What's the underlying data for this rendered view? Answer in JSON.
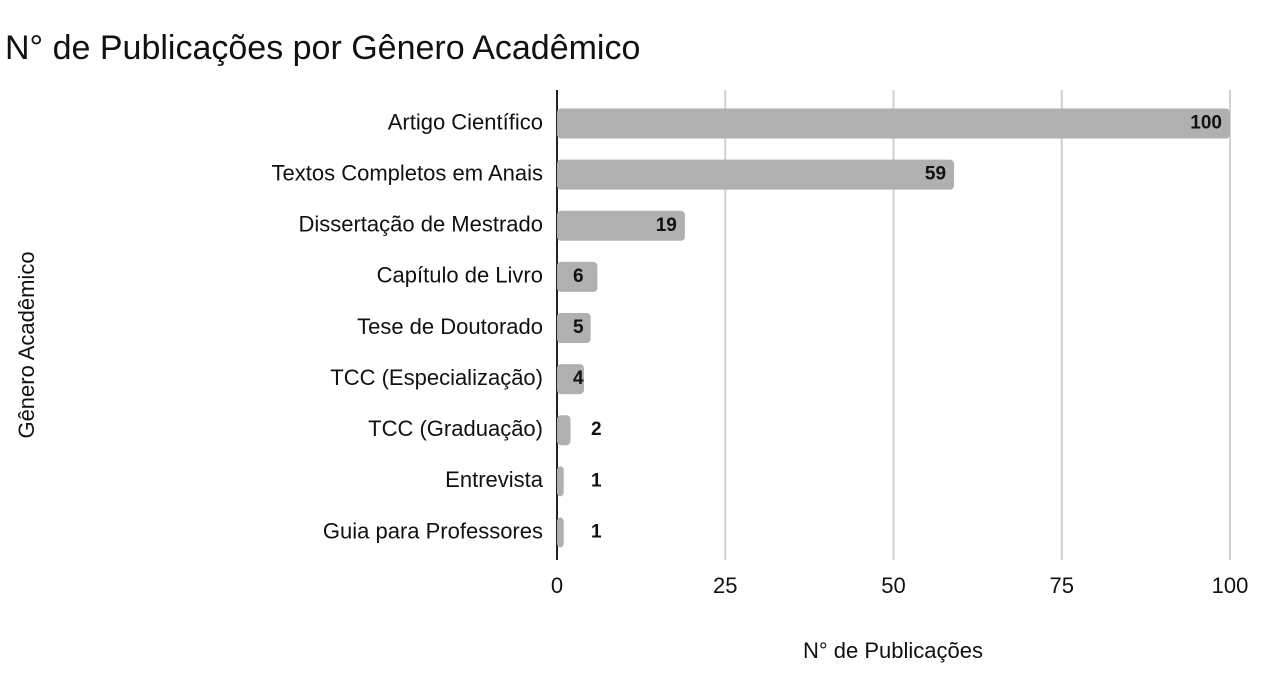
{
  "chart_data": {
    "type": "bar",
    "orientation": "horizontal",
    "title": "N° de Publicações por Gênero Acadêmico",
    "x_label": "N° de Publicações",
    "y_label": "Gênero Acadêmico",
    "categories": [
      "Artigo Científico",
      "Textos Completos em Anais",
      "Dissertação de Mestrado",
      "Capítulo de Livro",
      "Tese de Doutorado",
      "TCC (Especialização)",
      "TCC (Graduação)",
      "Entrevista",
      "Guia para Professores"
    ],
    "values": [
      100,
      59,
      19,
      6,
      5,
      4,
      2,
      1,
      1
    ],
    "color": "#b0b0b0",
    "xlim": [
      0,
      100
    ],
    "xticks": [
      0,
      25,
      50,
      75,
      100
    ],
    "grid": true
  }
}
